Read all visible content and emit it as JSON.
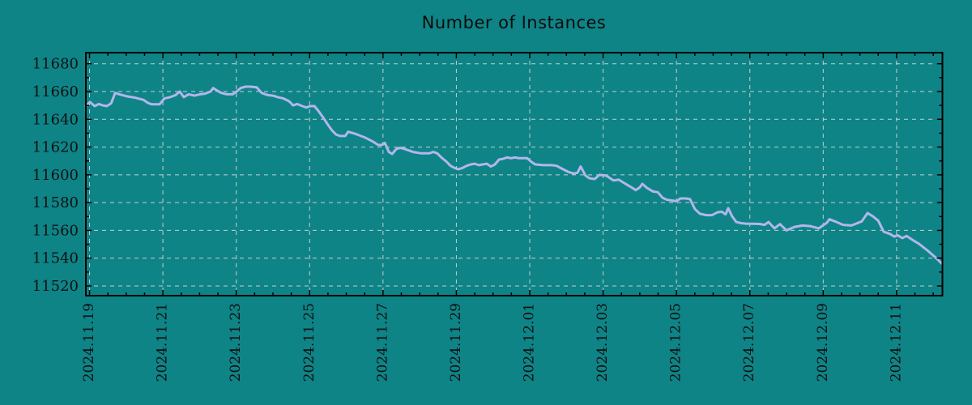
{
  "chart_data": {
    "type": "line",
    "title": "Number of Instances",
    "xlabel": "",
    "ylabel": "",
    "grid": true,
    "legend": "none",
    "background_color": "#0e8487",
    "grid_color": "#c4cfcf",
    "axis_color": "#000000",
    "text_color": "#101010",
    "x_axis": {
      "kind": "date",
      "days_since": "2024.11.19",
      "range_days": [
        -0.1,
        23.25
      ],
      "minor_tick_step_days": 0.5,
      "major_tick_step_days": 2,
      "tick_labels": [
        {
          "day": 0,
          "label": "2024.11.19"
        },
        {
          "day": 2,
          "label": "2024.11.21"
        },
        {
          "day": 4,
          "label": "2024.11.23"
        },
        {
          "day": 6,
          "label": "2024.11.25"
        },
        {
          "day": 8,
          "label": "2024.11.27"
        },
        {
          "day": 10,
          "label": "2024.11.29"
        },
        {
          "day": 12,
          "label": "2024.12.01"
        },
        {
          "day": 14,
          "label": "2024.12.03"
        },
        {
          "day": 16,
          "label": "2024.12.05"
        },
        {
          "day": 18,
          "label": "2024.12.07"
        },
        {
          "day": 20,
          "label": "2024.12.09"
        },
        {
          "day": 22,
          "label": "2024.12.11"
        }
      ]
    },
    "y_axis": {
      "range": [
        11513,
        11688
      ],
      "major_ticks": [
        11520,
        11540,
        11560,
        11580,
        11600,
        11620,
        11640,
        11660,
        11680
      ],
      "minor_tick_step": 10
    },
    "series": [
      {
        "name": "instances",
        "color": "#b3b6ea",
        "line_width": 3,
        "points": [
          [
            -0.1,
            11649.5
          ],
          [
            0.01,
            11652.5
          ],
          [
            0.14,
            11649.5
          ],
          [
            0.25,
            11651
          ],
          [
            0.36,
            11650
          ],
          [
            0.47,
            11649.5
          ],
          [
            0.59,
            11651.5
          ],
          [
            0.7,
            11659
          ],
          [
            0.81,
            11658
          ],
          [
            1.03,
            11656.5
          ],
          [
            1.25,
            11655.5
          ],
          [
            1.47,
            11654
          ],
          [
            1.58,
            11652
          ],
          [
            1.69,
            11650.8
          ],
          [
            1.91,
            11650.8
          ],
          [
            2.04,
            11655
          ],
          [
            2.2,
            11656
          ],
          [
            2.35,
            11657.5
          ],
          [
            2.46,
            11660
          ],
          [
            2.57,
            11656
          ],
          [
            2.7,
            11658
          ],
          [
            2.86,
            11657
          ],
          [
            3.01,
            11658
          ],
          [
            3.15,
            11658.5
          ],
          [
            3.3,
            11660
          ],
          [
            3.37,
            11662.5
          ],
          [
            3.46,
            11661
          ],
          [
            3.59,
            11659
          ],
          [
            3.74,
            11658
          ],
          [
            3.9,
            11658
          ],
          [
            4.01,
            11660
          ],
          [
            4.12,
            11662.5
          ],
          [
            4.25,
            11663.5
          ],
          [
            4.4,
            11663.5
          ],
          [
            4.56,
            11663
          ],
          [
            4.69,
            11659
          ],
          [
            4.85,
            11657.5
          ],
          [
            5.0,
            11657
          ],
          [
            5.13,
            11656
          ],
          [
            5.29,
            11655
          ],
          [
            5.44,
            11653
          ],
          [
            5.55,
            11650
          ],
          [
            5.66,
            11651
          ],
          [
            5.8,
            11649.5
          ],
          [
            5.91,
            11648.5
          ],
          [
            6.02,
            11649.5
          ],
          [
            6.13,
            11649.5
          ],
          [
            6.24,
            11646
          ],
          [
            6.39,
            11640.5
          ],
          [
            6.5,
            11636
          ],
          [
            6.61,
            11632
          ],
          [
            6.72,
            11629
          ],
          [
            6.83,
            11628
          ],
          [
            6.97,
            11628
          ],
          [
            7.05,
            11631
          ],
          [
            7.19,
            11630
          ],
          [
            7.3,
            11629
          ],
          [
            7.5,
            11627
          ],
          [
            7.72,
            11624
          ],
          [
            7.87,
            11621.5
          ],
          [
            7.96,
            11621.5
          ],
          [
            8.05,
            11623
          ],
          [
            8.16,
            11616.5
          ],
          [
            8.25,
            11615
          ],
          [
            8.36,
            11618.5
          ],
          [
            8.47,
            11619.5
          ],
          [
            8.6,
            11618.5
          ],
          [
            8.82,
            11616.5
          ],
          [
            9.04,
            11615.5
          ],
          [
            9.26,
            11615.5
          ],
          [
            9.37,
            11616.5
          ],
          [
            9.48,
            11615.5
          ],
          [
            9.59,
            11612.5
          ],
          [
            9.73,
            11609.5
          ],
          [
            9.84,
            11606.5
          ],
          [
            9.95,
            11605
          ],
          [
            10.06,
            11604
          ],
          [
            10.17,
            11605
          ],
          [
            10.28,
            11606.5
          ],
          [
            10.39,
            11607.5
          ],
          [
            10.5,
            11608
          ],
          [
            10.61,
            11607
          ],
          [
            10.72,
            11607.5
          ],
          [
            10.83,
            11608
          ],
          [
            10.94,
            11606
          ],
          [
            11.05,
            11607.5
          ],
          [
            11.16,
            11611
          ],
          [
            11.27,
            11611.5
          ],
          [
            11.38,
            11612.5
          ],
          [
            11.49,
            11612
          ],
          [
            11.6,
            11612.5
          ],
          [
            11.71,
            11612
          ],
          [
            11.93,
            11612
          ],
          [
            12.04,
            11609.5
          ],
          [
            12.15,
            11607.5
          ],
          [
            12.38,
            11607
          ],
          [
            12.6,
            11607
          ],
          [
            12.73,
            11606.5
          ],
          [
            12.91,
            11604
          ],
          [
            13.06,
            11602
          ],
          [
            13.19,
            11601
          ],
          [
            13.3,
            11601.5
          ],
          [
            13.39,
            11606
          ],
          [
            13.52,
            11599.5
          ],
          [
            13.63,
            11597.5
          ],
          [
            13.77,
            11597
          ],
          [
            13.9,
            11600
          ],
          [
            14.08,
            11599.5
          ],
          [
            14.28,
            11596
          ],
          [
            14.43,
            11596.5
          ],
          [
            14.58,
            11594
          ],
          [
            14.74,
            11591.5
          ],
          [
            14.89,
            11589
          ],
          [
            15.0,
            11591
          ],
          [
            15.07,
            11593.5
          ],
          [
            15.2,
            11590.5
          ],
          [
            15.36,
            11588
          ],
          [
            15.49,
            11587.5
          ],
          [
            15.62,
            11583.5
          ],
          [
            15.75,
            11582
          ],
          [
            15.89,
            11581.5
          ],
          [
            16.0,
            11581
          ],
          [
            16.11,
            11583
          ],
          [
            16.26,
            11583
          ],
          [
            16.37,
            11582.5
          ],
          [
            16.5,
            11575.5
          ],
          [
            16.64,
            11572
          ],
          [
            16.81,
            11571
          ],
          [
            16.97,
            11571
          ],
          [
            17.12,
            11573
          ],
          [
            17.23,
            11573.5
          ],
          [
            17.34,
            11571.5
          ],
          [
            17.41,
            11576
          ],
          [
            17.52,
            11570
          ],
          [
            17.63,
            11566
          ],
          [
            17.76,
            11565.2
          ],
          [
            17.92,
            11564.8
          ],
          [
            18.09,
            11564.8
          ],
          [
            18.27,
            11564.6
          ],
          [
            18.4,
            11564
          ],
          [
            18.51,
            11566
          ],
          [
            18.67,
            11561.5
          ],
          [
            18.82,
            11564.5
          ],
          [
            19.0,
            11560
          ],
          [
            19.22,
            11562.5
          ],
          [
            19.44,
            11563.5
          ],
          [
            19.66,
            11563
          ],
          [
            19.88,
            11561.5
          ],
          [
            20.1,
            11565.5
          ],
          [
            20.17,
            11568
          ],
          [
            20.32,
            11566.5
          ],
          [
            20.54,
            11564
          ],
          [
            20.77,
            11563.5
          ],
          [
            21.05,
            11566.5
          ],
          [
            21.21,
            11572.5
          ],
          [
            21.36,
            11570
          ],
          [
            21.5,
            11567
          ],
          [
            21.65,
            11559
          ],
          [
            21.81,
            11557.5
          ],
          [
            21.94,
            11555.5
          ],
          [
            22.03,
            11556.5
          ],
          [
            22.16,
            11554.5
          ],
          [
            22.27,
            11556
          ],
          [
            22.47,
            11552.5
          ],
          [
            22.6,
            11550.5
          ],
          [
            22.82,
            11546
          ],
          [
            23.04,
            11541
          ],
          [
            23.24,
            11536
          ]
        ]
      }
    ]
  }
}
